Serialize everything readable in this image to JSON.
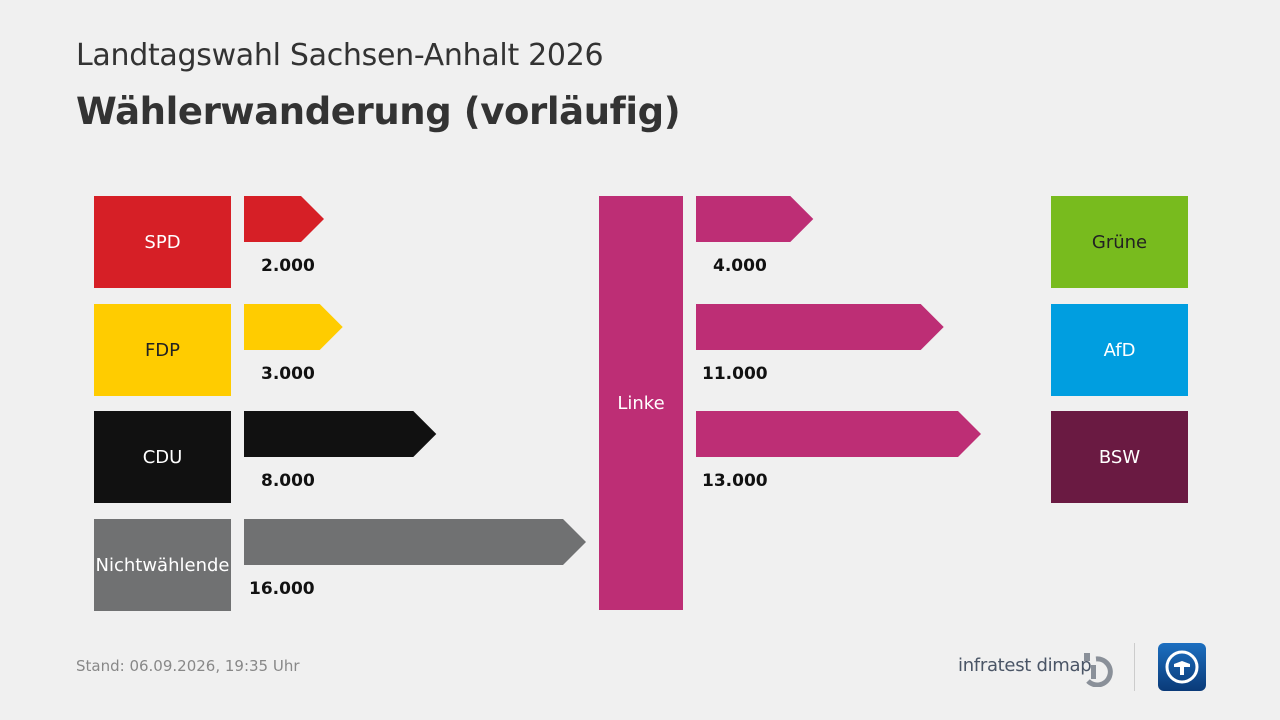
{
  "header": {
    "title": "Landtagswahl Sachsen-Anhalt 2026",
    "subtitle": "Wählerwanderung (vorläufig)"
  },
  "chart_data": {
    "type": "bar",
    "center": {
      "label": "Linke",
      "color": "#bd2e75"
    },
    "unit": "voters",
    "inflows": [
      {
        "party": "SPD",
        "value": 2000,
        "label": "2.000",
        "color": "#d61f26",
        "text_color": "#ffffff"
      },
      {
        "party": "FDP",
        "value": 3000,
        "label": "3.000",
        "color": "#ffcc00",
        "text_color": "#222222"
      },
      {
        "party": "CDU",
        "value": 8000,
        "label": "8.000",
        "color": "#111111",
        "text_color": "#ffffff"
      },
      {
        "party": "Nichtwählende",
        "value": 16000,
        "label": "16.000",
        "color": "#707172",
        "text_color": "#ffffff"
      }
    ],
    "outflows": [
      {
        "party": "Grüne",
        "value": 4000,
        "label": "4.000",
        "color": "#78bb1e",
        "text_color": "#222222"
      },
      {
        "party": "AfD",
        "value": 11000,
        "label": "11.000",
        "color": "#009ee0",
        "text_color": "#ffffff"
      },
      {
        "party": "BSW",
        "value": 13000,
        "label": "13.000",
        "color": "#6a1a42",
        "text_color": "#ffffff"
      }
    ]
  },
  "footer": {
    "stand": "Stand:  06.09.2026, 19:35 Uhr",
    "source": "infratest dimap"
  }
}
